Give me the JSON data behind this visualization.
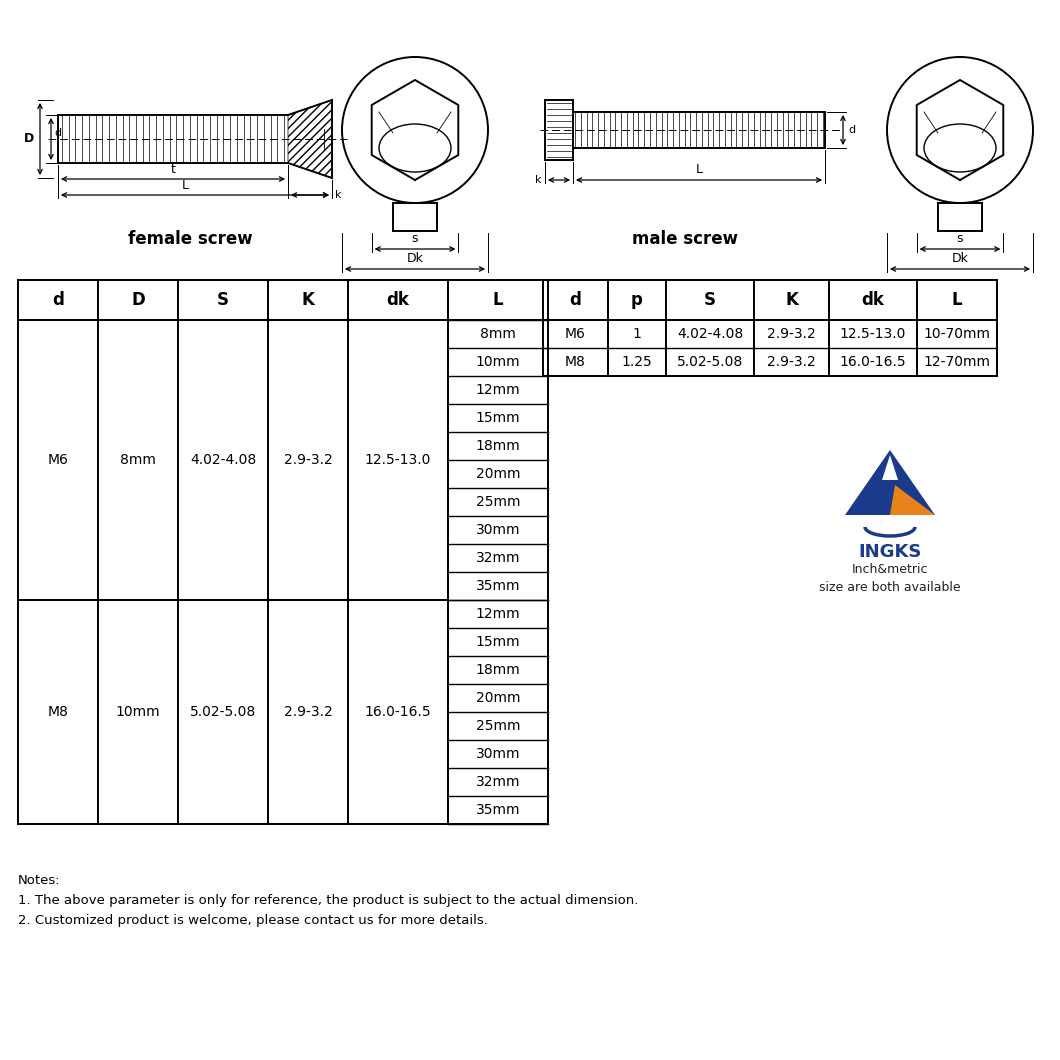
{
  "bg_color": "#ffffff",
  "female_screw_label": "female screw",
  "male_screw_label": "male screw",
  "table_left_headers": [
    "d",
    "D",
    "S",
    "K",
    "dk",
    "L"
  ],
  "table_right_headers": [
    "d",
    "p",
    "S",
    "K",
    "dk",
    "L"
  ],
  "m6_row": [
    "M6",
    "8mm",
    "4.02-4.08",
    "2.9-3.2",
    "12.5-13.0"
  ],
  "m8_row": [
    "M8",
    "10mm",
    "5.02-5.08",
    "2.9-3.2",
    "16.0-16.5"
  ],
  "m6_L_values": [
    "8mm",
    "10mm",
    "12mm",
    "15mm",
    "18mm",
    "20mm",
    "25mm",
    "30mm",
    "32mm",
    "35mm"
  ],
  "m8_L_values": [
    "12mm",
    "15mm",
    "18mm",
    "20mm",
    "25mm",
    "30mm",
    "32mm",
    "35mm"
  ],
  "right_m6_row": [
    "M6",
    "1",
    "4.02-4.08",
    "2.9-3.2",
    "12.5-13.0",
    "10-70mm"
  ],
  "right_m8_row": [
    "M8",
    "1.25",
    "5.02-5.08",
    "2.9-3.2",
    "16.0-16.5",
    "12-70mm"
  ],
  "notes": [
    "Notes:",
    "1. The above parameter is only for reference, the product is subject to the actual dimension.",
    "2. Customized product is welcome, please contact us for more details."
  ],
  "ingks_text": "INGKS",
  "ingks_sub": "Inch&metric\nsize are both available",
  "ingks_color": "#1a3a8c",
  "ingks_orange": "#e8821a"
}
